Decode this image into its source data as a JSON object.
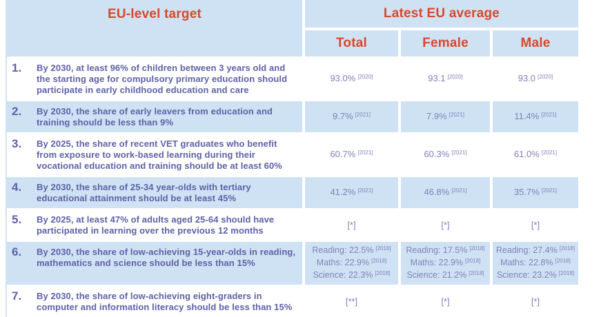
{
  "colors": {
    "cell_blue": "#cfe2f4",
    "header_text_red": "#d9472b",
    "target_text_purple": "#5d61a6",
    "value_text_purple": "#7e82b8"
  },
  "header": {
    "target_col": "EU-level target",
    "avg_group": "Latest EU average",
    "total": "Total",
    "female": "Female",
    "male": "Male"
  },
  "chart_data": {
    "type": "table",
    "columns": [
      "#",
      "EU-level target",
      "Total",
      "Female",
      "Male"
    ],
    "rows": [
      {
        "num": "1.",
        "target": "By 2030, at least 96% of children between 3 years old and the starting age for compulsory primary education should participate in early childhood education and care",
        "cells": [
          {
            "lines": [
              {
                "text": "93.0%",
                "sup": "[2020]"
              }
            ]
          },
          {
            "lines": [
              {
                "text": "93.1",
                "sup": "[2020]"
              }
            ]
          },
          {
            "lines": [
              {
                "text": "93.0",
                "sup": "[2020]"
              }
            ]
          }
        ]
      },
      {
        "num": "2.",
        "target": "By 2030, the share of early leavers from education and training should be less than 9%",
        "cells": [
          {
            "lines": [
              {
                "text": "9.7%",
                "sup": "[2021]"
              }
            ]
          },
          {
            "lines": [
              {
                "text": "7.9%",
                "sup": "[2021]"
              }
            ]
          },
          {
            "lines": [
              {
                "text": "11.4%",
                "sup": "[2021]"
              }
            ]
          }
        ]
      },
      {
        "num": "3.",
        "target": "By 2025, the share of recent VET graduates who benefit from exposure to work-based learning during their vocational education and training should be at least 60%",
        "cells": [
          {
            "lines": [
              {
                "text": "60.7%",
                "sup": "[2021]"
              }
            ]
          },
          {
            "lines": [
              {
                "text": "60.3%",
                "sup": "[2021]"
              }
            ]
          },
          {
            "lines": [
              {
                "text": "61.0%",
                "sup": "[2021]"
              }
            ]
          }
        ]
      },
      {
        "num": "4.",
        "target": "By 2030, the share of 25-34 year-olds with tertiary educational attainment should be at least 45%",
        "cells": [
          {
            "lines": [
              {
                "text": "41.2%",
                "sup": "[2021]"
              }
            ]
          },
          {
            "lines": [
              {
                "text": "46.8%",
                "sup": "[2021]"
              }
            ]
          },
          {
            "lines": [
              {
                "text": "35.7%",
                "sup": "[2021]"
              }
            ]
          }
        ]
      },
      {
        "num": "5.",
        "target": "By 2025, at least 47% of adults aged 25-64 should have participated in learning over the previous 12 months",
        "cells": [
          {
            "lines": [
              {
                "text": "[*]",
                "sup": ""
              }
            ]
          },
          {
            "lines": [
              {
                "text": "[*]",
                "sup": ""
              }
            ]
          },
          {
            "lines": [
              {
                "text": "[*]",
                "sup": ""
              }
            ]
          }
        ]
      },
      {
        "num": "6.",
        "target": "By 2030, the share of low-achieving 15-year-olds in reading, mathematics and science should be less than 15%",
        "cells": [
          {
            "lines": [
              {
                "text": "Reading: 22.5%",
                "sup": "[2018]"
              },
              {
                "text": "Maths: 22.9%",
                "sup": "[2018]"
              },
              {
                "text": "Science: 22.3%",
                "sup": "[2018]"
              }
            ]
          },
          {
            "lines": [
              {
                "text": "Reading: 17.5%",
                "sup": "[2018]"
              },
              {
                "text": "Maths: 22.9%",
                "sup": "[2018]"
              },
              {
                "text": "Science: 21.2%",
                "sup": "[2018]"
              }
            ]
          },
          {
            "lines": [
              {
                "text": "Reading: 27.4%",
                "sup": "[2018]"
              },
              {
                "text": "Maths: 22.8%",
                "sup": "[2018]"
              },
              {
                "text": "Science: 23.2%",
                "sup": "[2018]"
              }
            ]
          }
        ]
      },
      {
        "num": "7.",
        "target": "By 2030, the share of low-achieving eight-graders in computer and information literacy should be less than 15%",
        "cells": [
          {
            "lines": [
              {
                "text": "[**]",
                "sup": ""
              }
            ]
          },
          {
            "lines": [
              {
                "text": "[*]",
                "sup": ""
              }
            ]
          },
          {
            "lines": [
              {
                "text": "[*]",
                "sup": ""
              }
            ]
          }
        ]
      }
    ]
  }
}
